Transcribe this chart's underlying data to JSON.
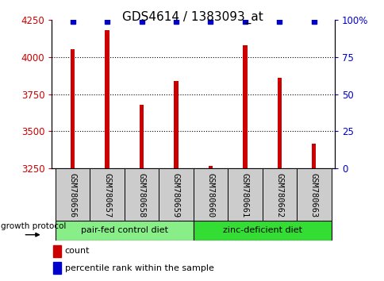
{
  "title": "GDS4614 / 1383093_at",
  "samples": [
    "GSM780656",
    "GSM780657",
    "GSM780658",
    "GSM780659",
    "GSM780660",
    "GSM780661",
    "GSM780662",
    "GSM780663"
  ],
  "counts": [
    4050,
    4180,
    3680,
    3840,
    3270,
    4080,
    3860,
    3420
  ],
  "percentile_ranks": [
    99,
    99,
    99,
    99,
    99,
    99,
    99,
    99
  ],
  "ylim_left": [
    3250,
    4250
  ],
  "ylim_right": [
    0,
    100
  ],
  "yticks_left": [
    3250,
    3500,
    3750,
    4000,
    4250
  ],
  "yticks_right": [
    0,
    25,
    50,
    75,
    100
  ],
  "ytick_labels_right": [
    "0",
    "25",
    "50",
    "75",
    "100%"
  ],
  "bar_color": "#cc0000",
  "dot_color": "#0000cc",
  "grid_color": "#000000",
  "groups": [
    {
      "label": "pair-fed control diet",
      "indices": [
        0,
        1,
        2,
        3
      ],
      "color": "#88ee88"
    },
    {
      "label": "zinc-deficient diet",
      "indices": [
        4,
        5,
        6,
        7
      ],
      "color": "#33dd33"
    }
  ],
  "group_label": "growth protocol",
  "legend_count_label": "count",
  "legend_pct_label": "percentile rank within the sample",
  "title_fontsize": 11,
  "tick_fontsize": 8.5,
  "axis_label_color_left": "#cc0000",
  "axis_label_color_right": "#0000cc",
  "bar_width": 0.12,
  "sample_box_color": "#cccccc"
}
